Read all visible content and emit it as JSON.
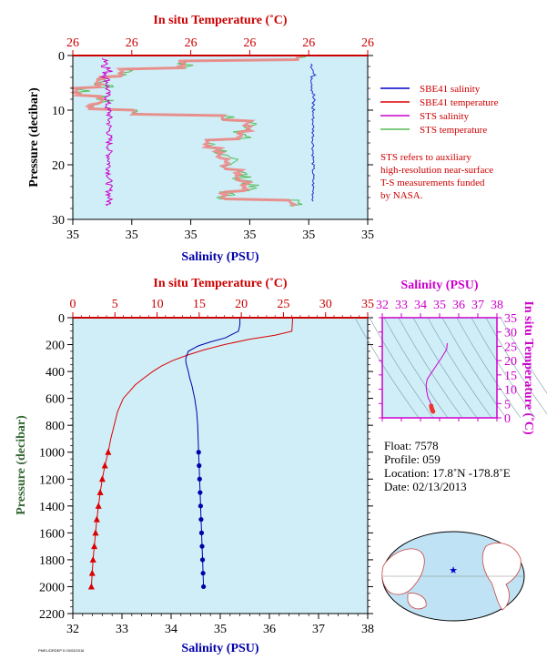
{
  "chart_data": [
    {
      "type": "line",
      "top_axis_label": "In situ Temperature (˚C)",
      "top_ticks": [
        "26",
        "26",
        "26",
        "26",
        "26",
        "26"
      ],
      "bottom_axis_label": "Salinity (PSU)",
      "bottom_ticks": [
        "35",
        "35",
        "35",
        "35",
        "35",
        "35"
      ],
      "ylabel": "Pressure (decibar)",
      "y_ticks": [
        "0",
        "10",
        "20",
        "30"
      ],
      "ylim": [
        0,
        30
      ],
      "legend": [
        {
          "name": "SBE41 salinity",
          "color": "#0000cc"
        },
        {
          "name": "SBE41 temperature",
          "color": "#dd0000"
        },
        {
          "name": "STS salinity",
          "color": "#cc00cc"
        },
        {
          "name": "STS temperature",
          "color": "#55bb55"
        }
      ],
      "note": [
        "STS refers to auxiliary",
        "high-resolution near-surface",
        "T-S measurements funded",
        "by NASA."
      ]
    },
    {
      "type": "line",
      "top_axis_label": "In situ Temperature (˚C)",
      "top_ticks": [
        "0",
        "5",
        "10",
        "15",
        "20",
        "25",
        "30",
        "35"
      ],
      "xlim_temperature": [
        0,
        35
      ],
      "bottom_axis_label": "Salinity (PSU)",
      "bottom_ticks": [
        "32",
        "33",
        "34",
        "35",
        "36",
        "37",
        "38"
      ],
      "xlim_salinity": [
        32,
        38
      ],
      "ylabel": "Pressure (decibar)",
      "y_ticks": [
        "0",
        "200",
        "400",
        "600",
        "800",
        "1000",
        "1200",
        "1400",
        "1600",
        "1800",
        "2000",
        "2200"
      ],
      "ylim": [
        2200,
        0
      ],
      "series": [
        {
          "name": "temperature",
          "color": "#dd0000",
          "pressure": [
            0,
            100,
            130,
            160,
            200,
            240,
            280,
            320,
            360,
            400,
            450,
            500,
            550,
            600,
            700,
            800,
            900,
            1000
          ],
          "values": [
            26.1,
            26.0,
            24.0,
            21.0,
            18.0,
            15.5,
            13.5,
            11.8,
            10.5,
            9.5,
            8.4,
            7.4,
            6.7,
            6.0,
            5.3,
            4.9,
            4.5,
            4.2
          ],
          "deep_pressure": [
            1000,
            1100,
            1200,
            1300,
            1400,
            1500,
            1600,
            1700,
            1800,
            1900,
            2000
          ],
          "deep_values": [
            4.2,
            3.8,
            3.5,
            3.25,
            3.05,
            2.85,
            2.7,
            2.55,
            2.4,
            2.3,
            2.2
          ]
        },
        {
          "name": "salinity",
          "color": "#0000aa",
          "pressure": [
            0,
            50,
            100,
            150,
            180,
            210,
            250,
            300,
            330,
            360,
            400,
            450,
            500,
            600,
            700,
            800,
            900,
            1000
          ],
          "values": [
            35.4,
            35.4,
            35.37,
            35.1,
            34.8,
            34.55,
            34.35,
            34.3,
            34.3,
            34.32,
            34.35,
            34.38,
            34.42,
            34.48,
            34.52,
            34.54,
            34.55,
            34.56
          ],
          "deep_pressure": [
            1000,
            1100,
            1200,
            1300,
            1400,
            1500,
            1600,
            1700,
            1800,
            1900,
            2000
          ],
          "deep_values": [
            34.56,
            34.57,
            34.58,
            34.59,
            34.6,
            34.61,
            34.62,
            34.63,
            34.64,
            34.65,
            34.66
          ]
        }
      ]
    },
    {
      "type": "scatter",
      "top_axis_label": "Salinity (PSU)",
      "top_ticks": [
        "32",
        "33",
        "34",
        "35",
        "36",
        "37",
        "38"
      ],
      "right_axis_label": "In situ Temperature (˚C)",
      "right_ticks": [
        "0",
        "5",
        "10",
        "15",
        "20",
        "25",
        "30",
        "35"
      ]
    }
  ],
  "float_info": {
    "float": "Float:  7578",
    "profile": "Profile:  059",
    "location": "Location:  17.8˚N  -178.8˚E",
    "date": "Date:  02/13/2013"
  },
  "footer_text": "PMEL/DRDEP 5 03/03/2016"
}
